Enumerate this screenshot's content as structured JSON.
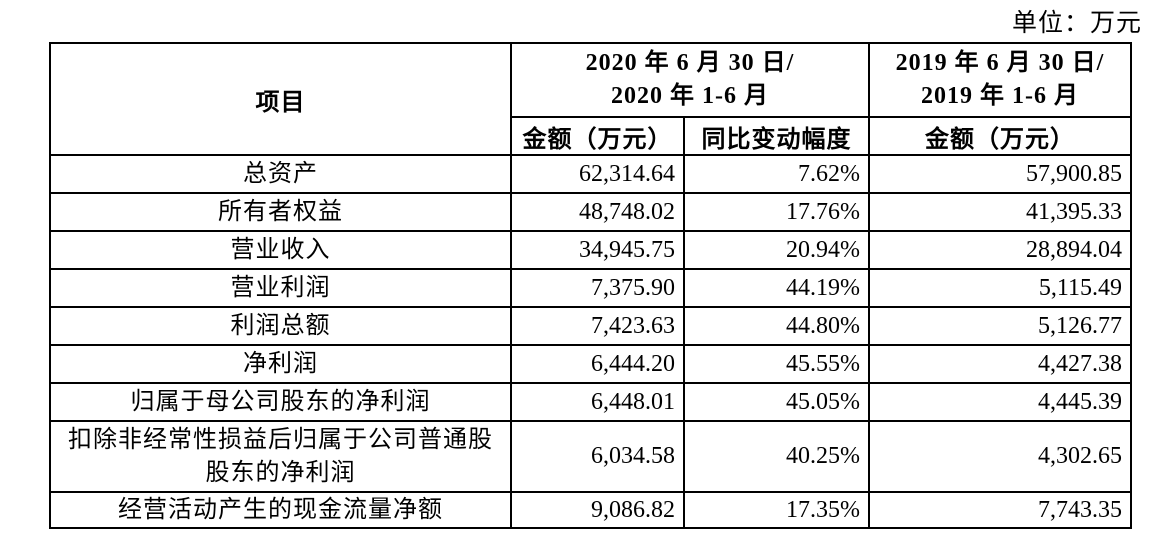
{
  "unit_label": "单位：万元",
  "table": {
    "columns": {
      "item": "项目",
      "period_2020_line1": "2020 年 6 月 30 日/",
      "period_2020_line2": "2020 年 1-6 月",
      "period_2019_line1": "2019 年 6 月 30 日/",
      "period_2019_line2": "2019 年 1-6 月",
      "amount_2020": "金额（万元）",
      "yoy_change": "同比变动幅度",
      "amount_2019": "金额（万元）"
    },
    "rows": [
      {
        "label": "总资产",
        "amount_2020": "62,314.64",
        "yoy_change": "7.62%",
        "amount_2019": "57,900.85"
      },
      {
        "label": "所有者权益",
        "amount_2020": "48,748.02",
        "yoy_change": "17.76%",
        "amount_2019": "41,395.33"
      },
      {
        "label": "营业收入",
        "amount_2020": "34,945.75",
        "yoy_change": "20.94%",
        "amount_2019": "28,894.04"
      },
      {
        "label": "营业利润",
        "amount_2020": "7,375.90",
        "yoy_change": "44.19%",
        "amount_2019": "5,115.49"
      },
      {
        "label": "利润总额",
        "amount_2020": "7,423.63",
        "yoy_change": "44.80%",
        "amount_2019": "5,126.77"
      },
      {
        "label": "净利润",
        "amount_2020": "6,444.20",
        "yoy_change": "45.55%",
        "amount_2019": "4,427.38"
      },
      {
        "label": "归属于母公司股东的净利润",
        "amount_2020": "6,448.01",
        "yoy_change": "45.05%",
        "amount_2019": "4,445.39"
      },
      {
        "label": "扣除非经常性损益后归属于公司普通股股东的净利润",
        "amount_2020": "6,034.58",
        "yoy_change": "40.25%",
        "amount_2019": "4,302.65"
      },
      {
        "label": "经营活动产生的现金流量净额",
        "amount_2020": "9,086.82",
        "yoy_change": "17.35%",
        "amount_2019": "7,743.35"
      }
    ]
  }
}
